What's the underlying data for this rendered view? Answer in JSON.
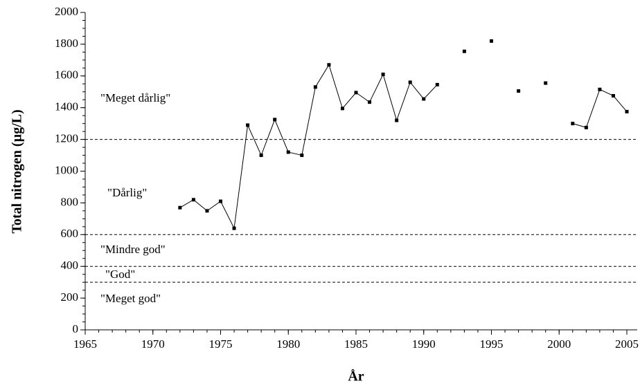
{
  "chart_data": {
    "type": "line",
    "x_label": "År",
    "y_label": "Total nitrogen (µg/L)",
    "x": [
      1972,
      1973,
      1974,
      1975,
      1976,
      1977,
      1978,
      1979,
      1980,
      1981,
      1982,
      1983,
      1984,
      1985,
      1986,
      1987,
      1988,
      1989,
      1990,
      1991,
      1992,
      1993,
      1994,
      1995,
      1996,
      1997,
      1998,
      1999,
      2000,
      2001,
      2002,
      2003,
      2004,
      2005
    ],
    "series": [
      {
        "color": "#000000",
        "values": [
          770,
          820,
          750,
          810,
          640,
          1290,
          1100,
          1325,
          1120,
          1100,
          1530,
          1670,
          1395,
          1495,
          1435,
          1610,
          1320,
          1560,
          1455,
          1545,
          null,
          1755,
          null,
          1820,
          null,
          1505,
          null,
          1555,
          null,
          1300,
          1275,
          1515,
          1475,
          1375
        ]
      }
    ],
    "xlim": [
      1965,
      2005
    ],
    "xticks": [
      1965,
      1970,
      1975,
      1980,
      1985,
      1990,
      1995,
      2000,
      2005
    ],
    "ylim": [
      0,
      2000
    ],
    "yticks": [
      0,
      200,
      400,
      600,
      800,
      1000,
      1200,
      1400,
      1600,
      1800,
      2000
    ],
    "thresholds": [
      1200,
      600,
      400,
      300
    ],
    "annotations": [
      "\"Meget dårlig\"",
      "\"Dårlig\"",
      "\"Mindre god\"",
      "\"God\"",
      "\"Meget god\""
    ]
  }
}
